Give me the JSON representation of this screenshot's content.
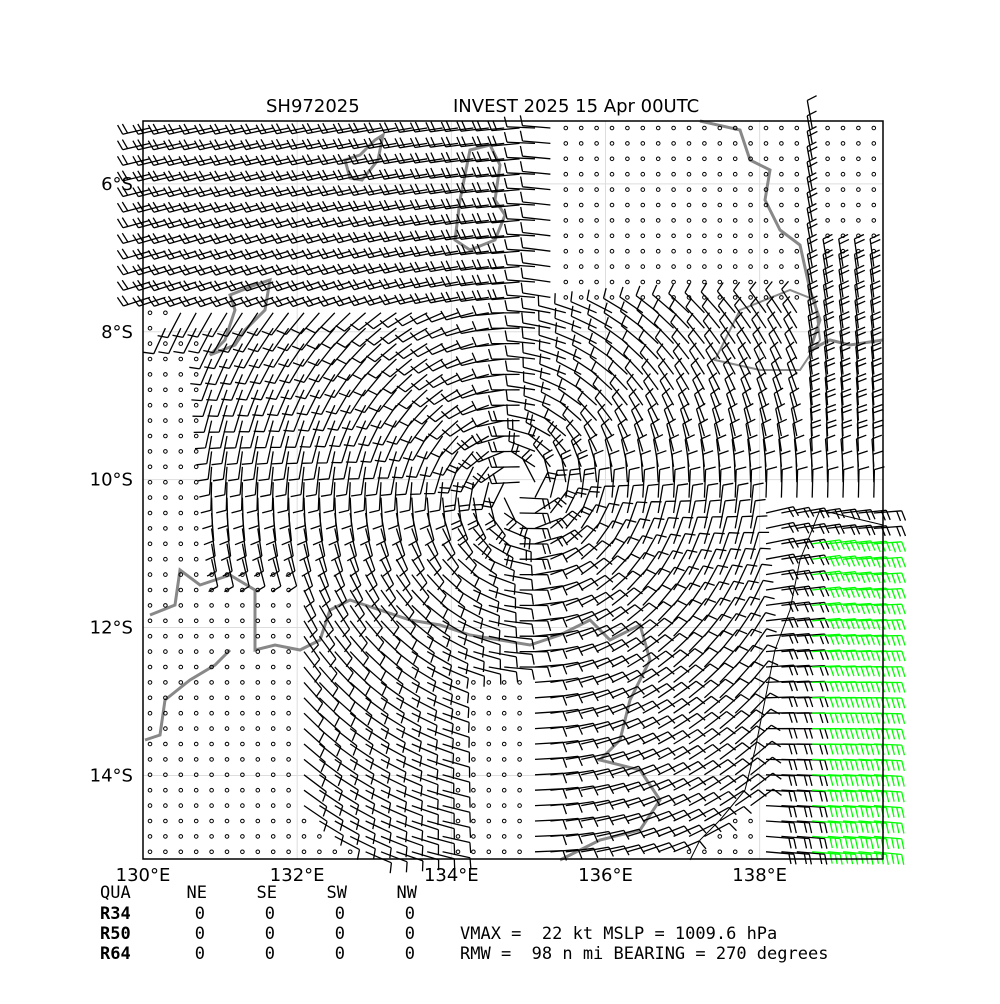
{
  "header": {
    "storm_id": "SH972025",
    "title": "INVEST 2025 15 Apr 00UTC"
  },
  "map": {
    "xlim": [
      130,
      139.6
    ],
    "ylim": [
      -15.13,
      -5.15
    ],
    "xticks": [
      {
        "value": 130,
        "label": "130°E"
      },
      {
        "value": 132,
        "label": "132°E"
      },
      {
        "value": 134,
        "label": "134°E"
      },
      {
        "value": 136,
        "label": "136°E"
      },
      {
        "value": 138,
        "label": "138°E"
      }
    ],
    "yticks": [
      {
        "value": -6,
        "label": "6°S"
      },
      {
        "value": -8,
        "label": "8°S"
      },
      {
        "value": -10,
        "label": "10°S"
      },
      {
        "value": -12,
        "label": "12°S"
      },
      {
        "value": -14,
        "label": "14°S"
      }
    ]
  },
  "table": {
    "header": [
      "QUA",
      "NE",
      "SE",
      "SW",
      "NW"
    ],
    "rows": [
      [
        "R34",
        0,
        0,
        0,
        0
      ],
      [
        "R50",
        0,
        0,
        0,
        0
      ],
      [
        "R64",
        0,
        0,
        0,
        0
      ]
    ]
  },
  "info": [
    "VMAX =  22 kt MSLP = 1009.6 hPa",
    "RMW =  98 n mi BEARING = 270 degrees"
  ]
}
